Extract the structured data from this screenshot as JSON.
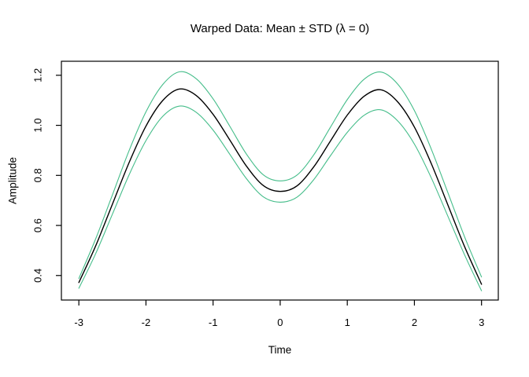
{
  "chart_data": {
    "type": "line",
    "title": "Warped Data: Mean ± STD (λ = 0)",
    "xlabel": "Time",
    "ylabel": "Amplitude",
    "xlim": [
      -3.26,
      3.25
    ],
    "ylim": [
      0.302,
      1.256
    ],
    "x_ticks": [
      -3,
      -2,
      -1,
      0,
      1,
      2,
      3
    ],
    "y_ticks": [
      0.4,
      0.6,
      0.8,
      1.0,
      1.2
    ],
    "grid": false,
    "legend": null,
    "x": [
      -3,
      -2.75,
      -2.5,
      -2.25,
      -2,
      -1.75,
      -1.5,
      -1.25,
      -1,
      -0.75,
      -0.5,
      -0.25,
      0,
      0.25,
      0.5,
      0.75,
      1,
      1.25,
      1.5,
      1.75,
      2,
      2.25,
      2.5,
      2.75,
      3
    ],
    "series": [
      {
        "name": "mean-plus-std",
        "color": "#45bd8a",
        "values": [
          0.388,
          0.546,
          0.722,
          0.9,
          1.054,
          1.163,
          1.214,
          1.186,
          1.106,
          0.996,
          0.884,
          0.802,
          0.778,
          0.801,
          0.882,
          0.993,
          1.103,
          1.184,
          1.213,
          1.165,
          1.059,
          0.906,
          0.73,
          0.553,
          0.394
        ]
      },
      {
        "name": "mean-minus-std",
        "color": "#45bd8a",
        "values": [
          0.349,
          0.487,
          0.645,
          0.803,
          0.939,
          1.036,
          1.077,
          1.052,
          0.981,
          0.884,
          0.786,
          0.714,
          0.693,
          0.713,
          0.783,
          0.879,
          0.972,
          1.04,
          1.062,
          1.018,
          0.925,
          0.791,
          0.636,
          0.481,
          0.339
        ]
      },
      {
        "name": "mean",
        "color": "#000000",
        "values": [
          0.372,
          0.518,
          0.685,
          0.852,
          0.997,
          1.099,
          1.145,
          1.119,
          1.044,
          0.941,
          0.836,
          0.759,
          0.736,
          0.758,
          0.834,
          0.938,
          1.041,
          1.116,
          1.142,
          1.094,
          0.993,
          0.848,
          0.681,
          0.514,
          0.365
        ]
      }
    ]
  },
  "colors": {
    "background": "#ffffff",
    "frame": "#000000",
    "mean_line": "#000000",
    "std_band_line": "#45bd8a"
  }
}
